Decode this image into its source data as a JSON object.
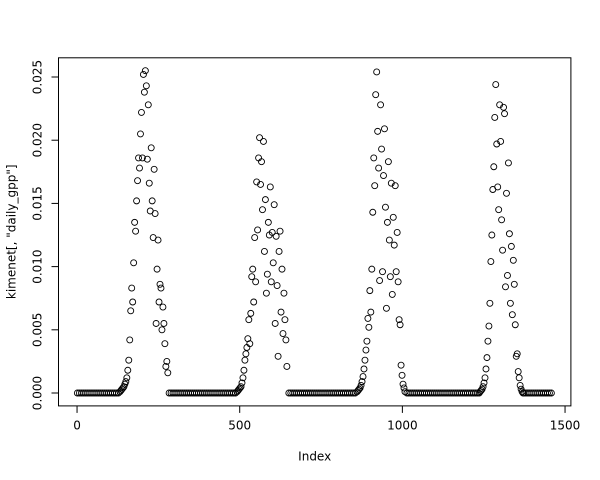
{
  "chart_data": {
    "type": "scatter",
    "x_label": "Index",
    "y_label": "kimenet[, \"daily_gpp\"]",
    "xlim": [
      -57,
      1518
    ],
    "ylim": [
      -0.00102,
      0.02652
    ],
    "xticks": [
      0,
      500,
      1000,
      1500
    ],
    "yticks": [
      {
        "value": 0,
        "label": "0.000"
      },
      {
        "value": 0.005,
        "label": "0.005"
      },
      {
        "value": 0.01,
        "label": "0.010"
      },
      {
        "value": 0.015,
        "label": "0.015"
      },
      {
        "value": 0.02,
        "label": "0.020"
      },
      {
        "value": 0.025,
        "label": "0.025"
      }
    ],
    "color": "#000000",
    "x": [
      1,
      7,
      13,
      19,
      25,
      31,
      37,
      43,
      49,
      55,
      61,
      67,
      73,
      79,
      85,
      91,
      97,
      103,
      109,
      115,
      121,
      127,
      132,
      135,
      138,
      141,
      144,
      147,
      150,
      153,
      156,
      159,
      162,
      165,
      168,
      171,
      174,
      177,
      180,
      183,
      186,
      189,
      192,
      195,
      198,
      201,
      204,
      207,
      210,
      213,
      216,
      219,
      222,
      225,
      228,
      231,
      234,
      237,
      240,
      243,
      246,
      249,
      252,
      255,
      258,
      261,
      264,
      267,
      270,
      273,
      276,
      279,
      283,
      289,
      295,
      301,
      307,
      313,
      319,
      325,
      331,
      337,
      343,
      349,
      355,
      361,
      367,
      373,
      379,
      385,
      391,
      397,
      403,
      409,
      415,
      421,
      427,
      433,
      439,
      445,
      451,
      457,
      463,
      469,
      475,
      481,
      487,
      492,
      495,
      498,
      501,
      504,
      507,
      510,
      513,
      516,
      519,
      522,
      525,
      528,
      531,
      534,
      537,
      540,
      543,
      546,
      549,
      552,
      555,
      558,
      561,
      564,
      567,
      570,
      573,
      576,
      579,
      582,
      585,
      588,
      591,
      594,
      597,
      600,
      603,
      606,
      609,
      612,
      615,
      618,
      621,
      624,
      627,
      630,
      633,
      636,
      639,
      642,
      645,
      651,
      657,
      663,
      669,
      675,
      681,
      687,
      693,
      699,
      705,
      711,
      717,
      723,
      729,
      735,
      741,
      747,
      753,
      759,
      765,
      771,
      777,
      783,
      789,
      795,
      801,
      807,
      813,
      819,
      825,
      831,
      837,
      843,
      849,
      855,
      861,
      864,
      867,
      870,
      873,
      876,
      879,
      882,
      885,
      888,
      891,
      894,
      897,
      900,
      903,
      906,
      909,
      912,
      915,
      918,
      921,
      924,
      927,
      930,
      933,
      936,
      939,
      942,
      945,
      948,
      951,
      954,
      957,
      960,
      963,
      966,
      969,
      972,
      975,
      978,
      981,
      984,
      987,
      990,
      993,
      996,
      999,
      1002,
      1005,
      1008,
      1014,
      1020,
      1026,
      1032,
      1038,
      1044,
      1050,
      1056,
      1062,
      1068,
      1074,
      1080,
      1086,
      1092,
      1098,
      1104,
      1110,
      1116,
      1122,
      1128,
      1134,
      1140,
      1146,
      1152,
      1158,
      1164,
      1170,
      1176,
      1182,
      1188,
      1194,
      1200,
      1206,
      1212,
      1218,
      1224,
      1230,
      1236,
      1239,
      1242,
      1245,
      1248,
      1251,
      1254,
      1257,
      1260,
      1263,
      1266,
      1269,
      1272,
      1275,
      1278,
      1281,
      1284,
      1287,
      1290,
      1293,
      1296,
      1299,
      1302,
      1305,
      1308,
      1311,
      1314,
      1317,
      1320,
      1323,
      1326,
      1329,
      1332,
      1335,
      1338,
      1341,
      1344,
      1347,
      1350,
      1353,
      1356,
      1359,
      1362,
      1365,
      1368,
      1371,
      1374,
      1380,
      1386,
      1392,
      1398,
      1404,
      1410,
      1416,
      1422,
      1428,
      1434,
      1440,
      1446,
      1452,
      1458
    ],
    "values": [
      0,
      0,
      0,
      0,
      0,
      0,
      0,
      0,
      0,
      0,
      0,
      0,
      0,
      0,
      0,
      0,
      0,
      0,
      0,
      0,
      0,
      0,
      0.0001,
      0.0002,
      0.0003,
      0.0004,
      0.0005,
      0.0007,
      0.0009,
      0.0012,
      0.0018,
      0.0026,
      0.0042,
      0.0065,
      0.0083,
      0.0072,
      0.0103,
      0.0135,
      0.0128,
      0.0152,
      0.0168,
      0.0186,
      0.0178,
      0.0205,
      0.0222,
      0.0186,
      0.0252,
      0.0238,
      0.0255,
      0.0243,
      0.0185,
      0.0228,
      0.0166,
      0.0144,
      0.0194,
      0.0152,
      0.0123,
      0.0177,
      0.0142,
      0.0055,
      0.0098,
      0.0121,
      0.0072,
      0.0086,
      0.0083,
      0.005,
      0.0068,
      0.0055,
      0.0039,
      0.0021,
      0.0025,
      0.0016,
      0,
      0,
      0,
      0,
      0,
      0,
      0,
      0,
      0,
      0,
      0,
      0,
      0,
      0,
      0,
      0,
      0,
      0,
      0,
      0,
      0,
      0,
      0,
      0,
      0,
      0,
      0,
      0,
      0,
      0,
      0,
      0,
      0,
      0,
      0,
      0.0001,
      0.0002,
      0.0003,
      0.0004,
      0.0005,
      0.0008,
      0.0012,
      0.0018,
      0.0026,
      0.0031,
      0.0036,
      0.0043,
      0.0058,
      0.0039,
      0.0063,
      0.0092,
      0.0098,
      0.0072,
      0.0123,
      0.0088,
      0.0167,
      0.0129,
      0.0186,
      0.0202,
      0.0165,
      0.0183,
      0.0145,
      0.0199,
      0.0112,
      0.0153,
      0.0079,
      0.0094,
      0.0135,
      0.0125,
      0.0163,
      0.0088,
      0.0127,
      0.0103,
      0.0149,
      0.0055,
      0.0124,
      0.0085,
      0.0029,
      0.0112,
      0.0128,
      0.0064,
      0.0098,
      0.0047,
      0.0079,
      0.0058,
      0.0042,
      0.0021,
      0,
      0,
      0,
      0,
      0,
      0,
      0,
      0,
      0,
      0,
      0,
      0,
      0,
      0,
      0,
      0,
      0,
      0,
      0,
      0,
      0,
      0,
      0,
      0,
      0,
      0,
      0,
      0,
      0,
      0,
      0,
      0,
      0,
      0,
      0,
      0.0001,
      0.0002,
      0.0003,
      0.0004,
      0.0006,
      0.0009,
      0.0013,
      0.0019,
      0.0026,
      0.0034,
      0.0041,
      0.0059,
      0.0052,
      0.0081,
      0.0064,
      0.0098,
      0.0143,
      0.0186,
      0.0164,
      0.0236,
      0.0254,
      0.0207,
      0.0178,
      0.0089,
      0.0228,
      0.0193,
      0.0096,
      0.0172,
      0.0209,
      0.0147,
      0.0067,
      0.0135,
      0.0183,
      0.0121,
      0.0092,
      0.0166,
      0.0078,
      0.0139,
      0.0117,
      0.0164,
      0.0096,
      0.0127,
      0.0088,
      0.0058,
      0.0054,
      0.0022,
      0.0014,
      0.0007,
      0.0004,
      0.0001,
      0,
      0,
      0,
      0,
      0,
      0,
      0,
      0,
      0,
      0,
      0,
      0,
      0,
      0,
      0,
      0,
      0,
      0,
      0,
      0,
      0,
      0,
      0,
      0,
      0,
      0,
      0,
      0,
      0,
      0,
      0,
      0,
      0,
      0,
      0,
      0,
      0,
      0,
      0.0001,
      0.0002,
      0.0003,
      0.0005,
      0.0008,
      0.0012,
      0.0019,
      0.0028,
      0.0041,
      0.0053,
      0.0071,
      0.0104,
      0.0125,
      0.0161,
      0.0179,
      0.0218,
      0.0244,
      0.0197,
      0.0163,
      0.0145,
      0.0228,
      0.0199,
      0.0137,
      0.0113,
      0.0226,
      0.0221,
      0.0084,
      0.0158,
      0.0093,
      0.0182,
      0.0126,
      0.0071,
      0.0116,
      0.0062,
      0.0105,
      0.0086,
      0.0054,
      0.0029,
      0.0031,
      0.0017,
      0.0012,
      0.0006,
      0.0003,
      0.0001,
      0,
      0,
      0,
      0,
      0,
      0,
      0,
      0,
      0,
      0,
      0,
      0,
      0,
      0,
      0,
      0
    ]
  }
}
